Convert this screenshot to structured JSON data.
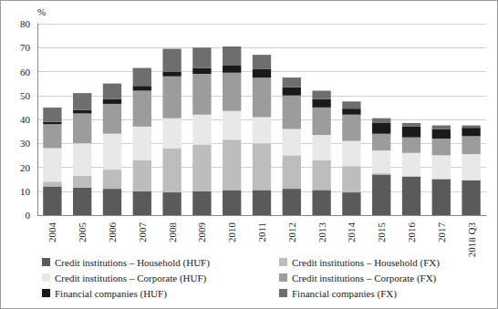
{
  "chart_data": {
    "type": "bar",
    "stacked": true,
    "y_label": "%",
    "categories": [
      "2004",
      "2005",
      "2006",
      "2007",
      "2008",
      "2009",
      "2010",
      "2011",
      "2012",
      "2013",
      "2014",
      "2015",
      "2016",
      "2017",
      "2018 Q3"
    ],
    "ylim": [
      0,
      80
    ],
    "yticks": [
      0,
      10,
      20,
      30,
      40,
      50,
      60,
      70,
      80
    ],
    "grid": true,
    "legend": "bottom",
    "series": [
      {
        "name": "Credit institutions – Household (HUF)",
        "color": "#5a5a5a",
        "values": [
          12,
          11.5,
          11,
          10,
          9.5,
          10,
          10.5,
          10.5,
          11,
          10.5,
          9.5,
          17,
          16,
          15,
          14.5
        ]
      },
      {
        "name": "Credit institutions – Household (FX)",
        "color": "#bdbdbd",
        "values": [
          2,
          5,
          8,
          13,
          18.5,
          19.5,
          21,
          19.5,
          14,
          12.5,
          11,
          0.5,
          0.3,
          0.2,
          0.2
        ]
      },
      {
        "name": "Credit institutions – Corporate (HUF)",
        "color": "#e8e8e8",
        "values": [
          14,
          13.5,
          15,
          14,
          12.5,
          12.5,
          12,
          11,
          11,
          10.5,
          10.5,
          9.5,
          9.7,
          9.8,
          10.8
        ]
      },
      {
        "name": "Credit institutions – Corporate (FX)",
        "color": "#9c9c9c",
        "values": [
          10,
          12.5,
          12.5,
          15,
          17.5,
          17,
          16,
          16.5,
          14,
          11.5,
          11,
          7,
          6.5,
          7,
          7.5
        ]
      },
      {
        "name": "Financial companies (HUF)",
        "color": "#1a1a1a",
        "values": [
          1,
          1.5,
          2,
          2,
          2,
          2.5,
          3,
          3.5,
          3.5,
          3.5,
          2.5,
          4.5,
          4.5,
          4,
          3.5
        ]
      },
      {
        "name": "Financial companies (FX)",
        "color": "#6e6e6e",
        "values": [
          6,
          7,
          6.5,
          7.5,
          9.5,
          8.5,
          8,
          6,
          4,
          3.5,
          3,
          2,
          1.5,
          1.5,
          1
        ]
      }
    ]
  }
}
